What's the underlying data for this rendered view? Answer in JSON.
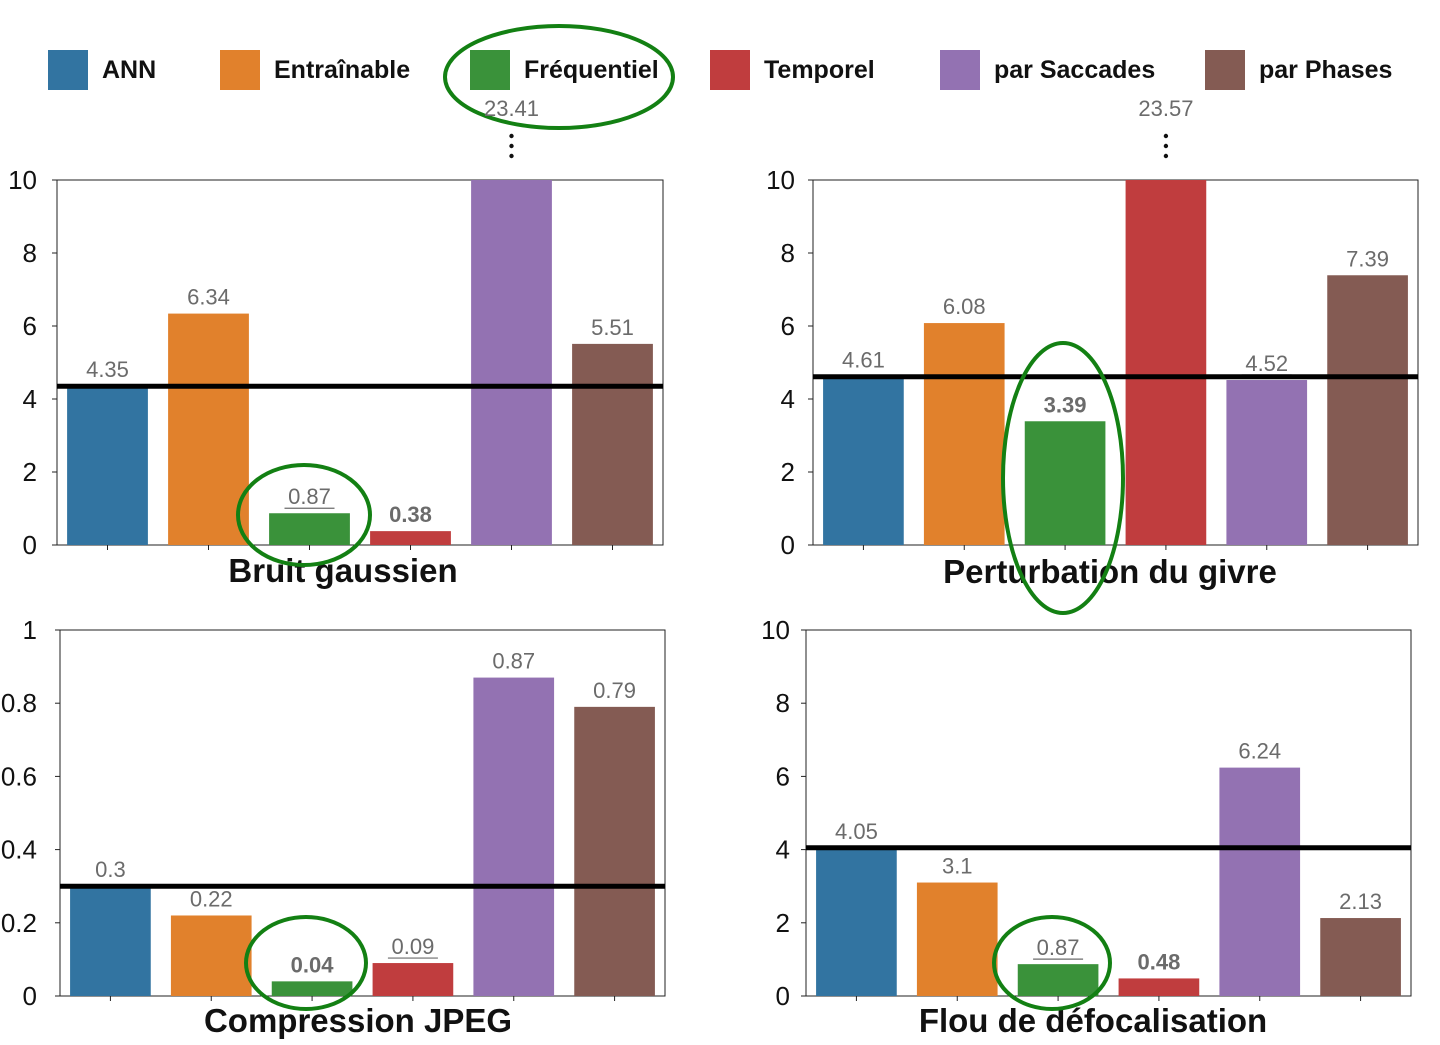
{
  "legend": {
    "items": [
      {
        "label": "ANN",
        "color": "#3274a1"
      },
      {
        "label": "Entraînable",
        "color": "#e1812c"
      },
      {
        "label": "Fréquentiel",
        "color": "#3a923a"
      },
      {
        "label": "Temporel",
        "color": "#c03d3e"
      },
      {
        "label": "par Saccades",
        "color": "#9372b2"
      },
      {
        "label": "par Phases",
        "color": "#845b53"
      }
    ],
    "highlighted": "Fréquentiel",
    "highlight_color": "#138013"
  },
  "chart_data": [
    {
      "type": "bar",
      "title": "Bruit gaussien",
      "categories": [
        "ANN",
        "Entraînable",
        "Fréquentiel",
        "Temporel",
        "par Saccades",
        "par Phases"
      ],
      "values": [
        4.35,
        6.34,
        0.87,
        0.38,
        23.41,
        5.51
      ],
      "value_labels": [
        "4.35",
        "6.34",
        "0.87",
        "0.38",
        "23.41",
        "5.51"
      ],
      "bold_labels": [
        3
      ],
      "underlined_labels": [
        2
      ],
      "truncated_bars": [
        4
      ],
      "ylim": [
        0,
        10
      ],
      "yticks": [
        "0",
        "2",
        "4",
        "6",
        "8",
        "10"
      ],
      "reference_line": 4.35,
      "circled_bar": 2
    },
    {
      "type": "bar",
      "title": "Perturbation du givre",
      "categories": [
        "ANN",
        "Entraînable",
        "Fréquentiel",
        "Temporel",
        "par Saccades",
        "par Phases"
      ],
      "values": [
        4.61,
        6.08,
        3.39,
        23.57,
        4.52,
        7.39
      ],
      "value_labels": [
        "4.61",
        "6.08",
        "3.39",
        "23.57",
        "4.52",
        "7.39"
      ],
      "bold_labels": [
        2
      ],
      "underlined_labels": [
        4
      ],
      "truncated_bars": [
        3
      ],
      "ylim": [
        0,
        10
      ],
      "yticks": [
        "0",
        "2",
        "4",
        "6",
        "8",
        "10"
      ],
      "reference_line": 4.61,
      "circled_bar": 2
    },
    {
      "type": "bar",
      "title": "Compression JPEG",
      "categories": [
        "ANN",
        "Entraînable",
        "Fréquentiel",
        "Temporel",
        "par Saccades",
        "par Phases"
      ],
      "values": [
        0.3,
        0.22,
        0.04,
        0.09,
        0.87,
        0.79
      ],
      "value_labels": [
        "0.3",
        "0.22",
        "0.04",
        "0.09",
        "0.87",
        "0.79"
      ],
      "bold_labels": [
        2
      ],
      "underlined_labels": [
        3
      ],
      "truncated_bars": [],
      "ylim": [
        0,
        1
      ],
      "yticks": [
        "0",
        "0.2",
        "0.4",
        "0.6",
        "0.8",
        "1"
      ],
      "reference_line": 0.3,
      "circled_bar": 2
    },
    {
      "type": "bar",
      "title": "Flou de défocalisation",
      "categories": [
        "ANN",
        "Entraînable",
        "Fréquentiel",
        "Temporel",
        "par Saccades",
        "par Phases"
      ],
      "values": [
        4.05,
        3.1,
        0.87,
        0.48,
        6.24,
        2.13
      ],
      "value_labels": [
        "4.05",
        "3.1",
        "0.87",
        "0.48",
        "6.24",
        "2.13"
      ],
      "bold_labels": [
        3
      ],
      "underlined_labels": [
        2
      ],
      "truncated_bars": [],
      "ylim": [
        0,
        10
      ],
      "yticks": [
        "0",
        "2",
        "4",
        "6",
        "8",
        "10"
      ],
      "reference_line": 4.05,
      "circled_bar": 2
    }
  ]
}
